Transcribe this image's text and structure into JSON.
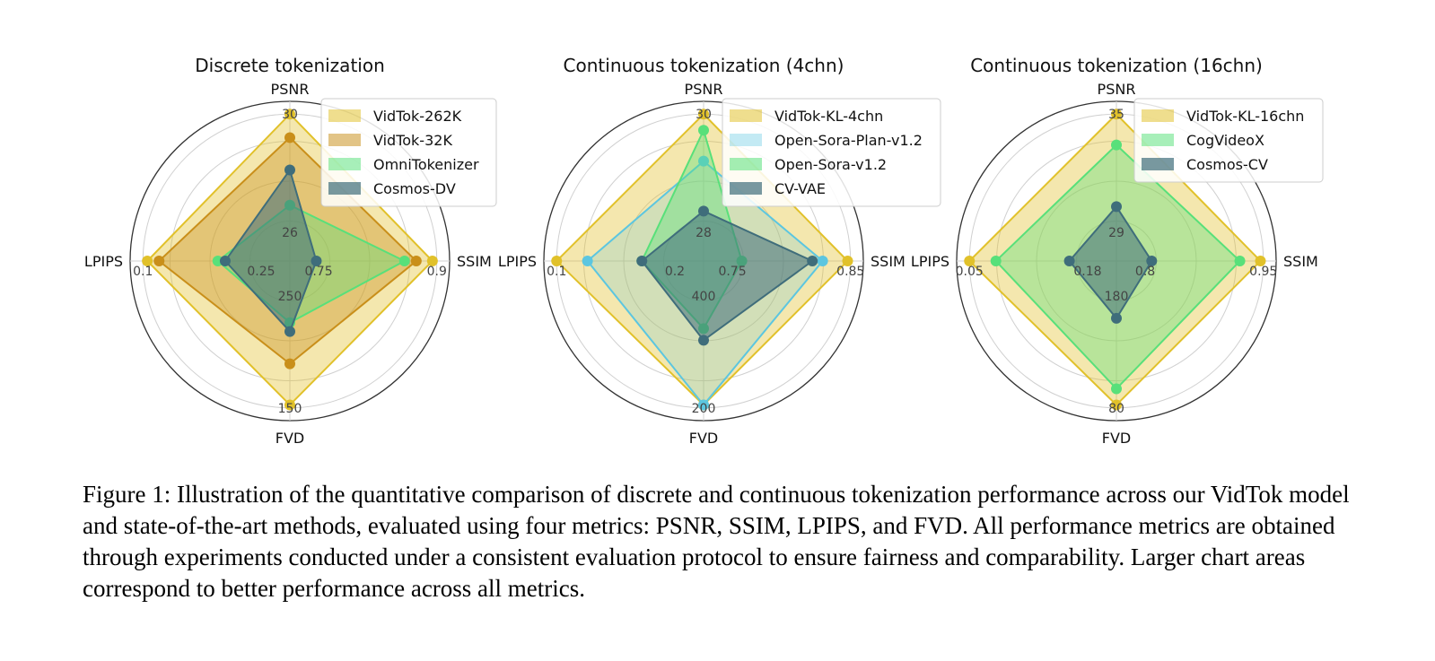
{
  "caption": "Figure 1: Illustration of the quantitative comparison of discrete and continuous tokenization performance across our VidTok model and state-of-the-art methods, evaluated using four metrics: PSNR, SSIM, LPIPS, and FVD. All performance metrics are obtained through experiments conducted under a consistent evaluation protocol to ensure fairness and comparability. Larger chart areas correspond to better performance across all metrics.",
  "chart_data": [
    {
      "type": "radar",
      "title": "Discrete tokenization",
      "axes": [
        "PSNR",
        "SSIM",
        "FVD",
        "LPIPS"
      ],
      "tick_labels": {
        "PSNR": [
          "26",
          "30"
        ],
        "SSIM": [
          "0.75",
          "0.9"
        ],
        "FVD": [
          "250",
          "150"
        ],
        "LPIPS": [
          "0.25",
          "0.1"
        ]
      },
      "series": [
        {
          "name": "VidTok-262K",
          "color": "#e1c12a",
          "fill_opacity": 0.38,
          "values": {
            "PSNR": 1.0,
            "SSIM": 0.97,
            "FVD": 0.98,
            "LPIPS": 0.97
          }
        },
        {
          "name": "VidTok-32K",
          "color": "#c98f1a",
          "fill_opacity": 0.38,
          "values": {
            "PSNR": 0.84,
            "SSIM": 0.86,
            "FVD": 0.7,
            "LPIPS": 0.89
          }
        },
        {
          "name": "OmniTokenizer",
          "color": "#58e07a",
          "fill_opacity": 0.38,
          "values": {
            "PSNR": 0.38,
            "SSIM": 0.78,
            "FVD": 0.42,
            "LPIPS": 0.49
          }
        },
        {
          "name": "Cosmos-DV",
          "color": "#3f6d7b",
          "fill_opacity": 0.55,
          "values": {
            "PSNR": 0.62,
            "SSIM": 0.18,
            "FVD": 0.48,
            "LPIPS": 0.44
          }
        }
      ]
    },
    {
      "type": "radar",
      "title": "Continuous tokenization (4chn)",
      "axes": [
        "PSNR",
        "SSIM",
        "FVD",
        "LPIPS"
      ],
      "tick_labels": {
        "PSNR": [
          "28",
          "30"
        ],
        "SSIM": [
          "0.75",
          "0.85"
        ],
        "FVD": [
          "400",
          "200"
        ],
        "LPIPS": [
          "0.2",
          "0.1"
        ]
      },
      "series": [
        {
          "name": "VidTok-KL-4chn",
          "color": "#e1c12a",
          "fill_opacity": 0.38,
          "values": {
            "PSNR": 1.0,
            "SSIM": 0.98,
            "FVD": 0.98,
            "LPIPS": 1.0
          }
        },
        {
          "name": "Open-Sora-Plan-v1.2",
          "color": "#5cc6e0",
          "fill_opacity": 0.22,
          "values": {
            "PSNR": 0.68,
            "SSIM": 0.81,
            "FVD": 0.98,
            "LPIPS": 0.79
          }
        },
        {
          "name": "Open-Sora-v1.2",
          "color": "#58e07a",
          "fill_opacity": 0.4,
          "values": {
            "PSNR": 0.89,
            "SSIM": 0.26,
            "FVD": 0.46,
            "LPIPS": 0.42
          }
        },
        {
          "name": "CV-VAE",
          "color": "#3f6d7b",
          "fill_opacity": 0.55,
          "values": {
            "PSNR": 0.34,
            "SSIM": 0.74,
            "FVD": 0.54,
            "LPIPS": 0.42
          }
        }
      ]
    },
    {
      "type": "radar",
      "title": "Continuous tokenization (16chn)",
      "axes": [
        "PSNR",
        "SSIM",
        "FVD",
        "LPIPS"
      ],
      "tick_labels": {
        "PSNR": [
          "29",
          "35"
        ],
        "SSIM": [
          "0.8",
          "0.95"
        ],
        "FVD": [
          "180",
          "80"
        ],
        "LPIPS": [
          "0.18",
          "0.05"
        ]
      },
      "series": [
        {
          "name": "VidTok-KL-16chn",
          "color": "#e1c12a",
          "fill_opacity": 0.38,
          "values": {
            "PSNR": 1.0,
            "SSIM": 0.98,
            "FVD": 0.98,
            "LPIPS": 1.0
          }
        },
        {
          "name": "CogVideoX",
          "color": "#58e07a",
          "fill_opacity": 0.38,
          "values": {
            "PSNR": 0.79,
            "SSIM": 0.84,
            "FVD": 0.87,
            "LPIPS": 0.82
          }
        },
        {
          "name": "Cosmos-CV",
          "color": "#3f6d7b",
          "fill_opacity": 0.55,
          "values": {
            "PSNR": 0.37,
            "SSIM": 0.24,
            "FVD": 0.39,
            "LPIPS": 0.32
          }
        }
      ]
    }
  ]
}
